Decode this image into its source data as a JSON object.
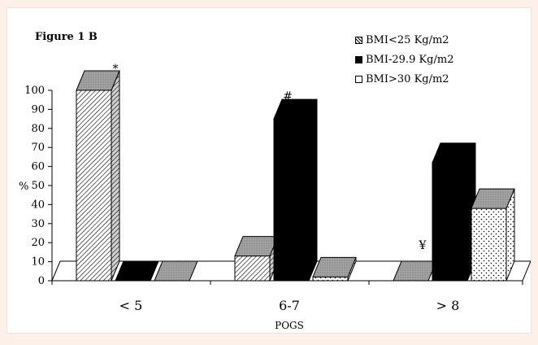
{
  "figure_label": "Figure 1 B",
  "legend": [
    {
      "label": "BMI<25 Kg/m2",
      "pattern": "hatch"
    },
    {
      "label": "BMI-29.9 Kg/m2",
      "pattern": "solid"
    },
    {
      "label": "BMI>30 Kg/m2",
      "pattern": "dots"
    }
  ],
  "colors": {
    "solid_series": "#000000",
    "floor": "#a9a9a9",
    "background_frame": "#fdf0e8"
  },
  "chart_data": {
    "type": "bar",
    "style": "3d-clustered",
    "categories": [
      "< 5",
      "6-7",
      "> 8"
    ],
    "xlabel": "POGS",
    "ylabel": "%",
    "ylim": [
      0,
      100
    ],
    "yticks": [
      0,
      10,
      20,
      30,
      40,
      50,
      60,
      70,
      80,
      90,
      100
    ],
    "series": [
      {
        "name": "BMI<25 Kg/m2",
        "values": [
          100,
          13,
          0
        ]
      },
      {
        "name": "BMI-29.9 Kg/m2",
        "values": [
          0,
          85,
          62
        ]
      },
      {
        "name": "BMI>30 Kg/m2",
        "values": [
          0,
          2,
          38
        ]
      }
    ],
    "annotations": [
      {
        "text": "*",
        "category": "< 5"
      },
      {
        "text": "#",
        "category": "6-7"
      },
      {
        "text": "¥",
        "category": "> 8"
      }
    ],
    "grid": false,
    "legend_position": "top-right"
  }
}
